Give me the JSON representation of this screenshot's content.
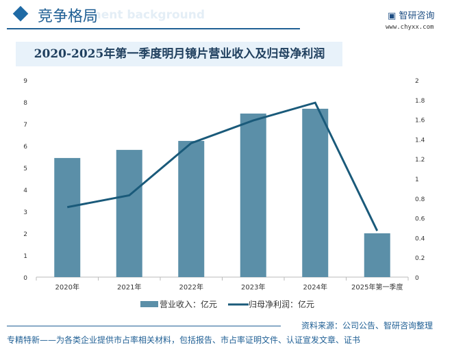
{
  "header": {
    "title": "竞争格局",
    "bg_text": "ment background",
    "logo_text": "智研咨询",
    "logo_url": "www.chyxx.com"
  },
  "chart_data": {
    "type": "bar+line",
    "title": "2020-2025年第一季度明月镜片营业收入及归母净利润",
    "categories": [
      "2020年",
      "2021年",
      "2022年",
      "2023年",
      "2024年",
      "2025年第一季度"
    ],
    "series": [
      {
        "name": "营业收入：亿元",
        "type": "bar",
        "axis": "left",
        "color": "#5b8fa8",
        "values": [
          5.44,
          5.81,
          6.22,
          7.47,
          7.69,
          2.0
        ]
      },
      {
        "name": "归母净利润：亿元",
        "type": "line",
        "axis": "right",
        "color": "#1a5a7a",
        "values": [
          0.71,
          0.83,
          1.36,
          1.59,
          1.77,
          0.47
        ]
      }
    ],
    "ylim_left": [
      0,
      9
    ],
    "yticks_left": [
      "0",
      "1",
      "2",
      "3",
      "4",
      "5",
      "6",
      "7",
      "8",
      "9"
    ],
    "ylim_right": [
      0,
      2
    ],
    "yticks_right": [
      "0",
      "0.2",
      "0.4",
      "0.6",
      "0.8",
      "1",
      "1.2",
      "1.4",
      "1.6",
      "1.8",
      "2"
    ],
    "legend": "bottom",
    "grid": false
  },
  "footer": {
    "source": "资料来源：公司公告、智研咨询整理",
    "slogan": "专精特新——为各类企业提供市占率相关材料，包括报告、市占率证明文件、认证宣发文章、证书"
  }
}
